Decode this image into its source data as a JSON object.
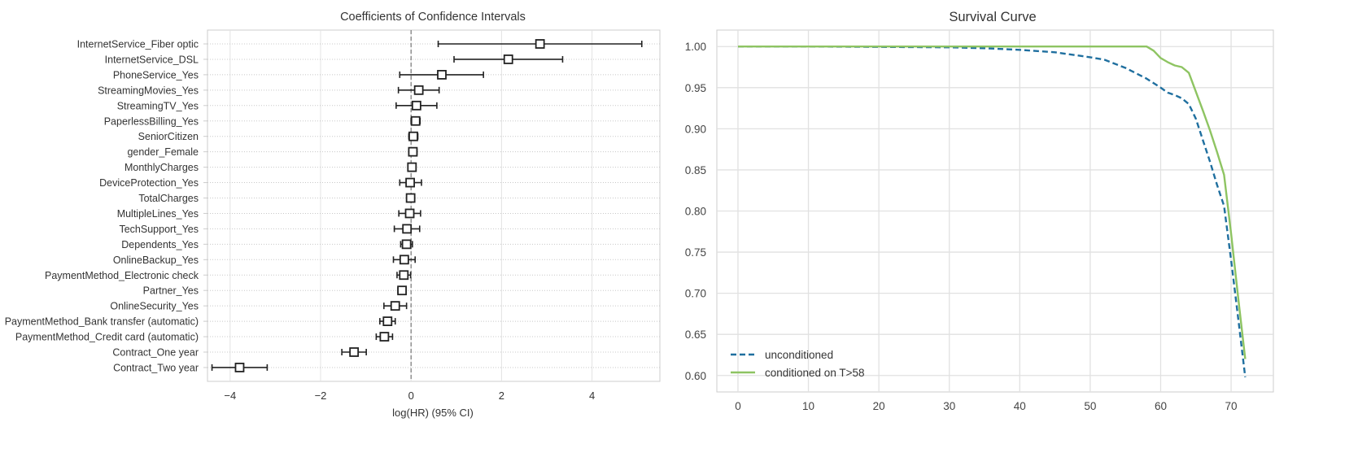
{
  "chart_data": [
    {
      "type": "forest",
      "title": "Coefficients of Confidence Intervals",
      "xlabel": "log(HR) (95% CI)",
      "ylabel": "",
      "xlim": [
        -4.5,
        5.5
      ],
      "xticks": [
        -4,
        -2,
        0,
        2,
        4
      ],
      "reference_line": 0,
      "grid": true,
      "rows": [
        {
          "label": "InternetService_Fiber optic",
          "coef": 2.85,
          "lower": 0.6,
          "upper": 5.1
        },
        {
          "label": "InternetService_DSL",
          "coef": 2.15,
          "lower": 0.95,
          "upper": 3.35
        },
        {
          "label": "PhoneService_Yes",
          "coef": 0.68,
          "lower": -0.25,
          "upper": 1.6
        },
        {
          "label": "StreamingMovies_Yes",
          "coef": 0.17,
          "lower": -0.28,
          "upper": 0.62
        },
        {
          "label": "StreamingTV_Yes",
          "coef": 0.12,
          "lower": -0.33,
          "upper": 0.57
        },
        {
          "label": "PaperlessBilling_Yes",
          "coef": 0.1,
          "lower": 0.0,
          "upper": 0.2
        },
        {
          "label": "SeniorCitizen",
          "coef": 0.05,
          "lower": -0.05,
          "upper": 0.15
        },
        {
          "label": "gender_Female",
          "coef": 0.04,
          "lower": -0.05,
          "upper": 0.13
        },
        {
          "label": "MonthlyCharges",
          "coef": 0.02,
          "lower": 0.0,
          "upper": 0.04
        },
        {
          "label": "DeviceProtection_Yes",
          "coef": -0.02,
          "lower": -0.25,
          "upper": 0.23
        },
        {
          "label": "TotalCharges",
          "coef": -0.01,
          "lower": -0.02,
          "upper": 0.0
        },
        {
          "label": "MultipleLines_Yes",
          "coef": -0.03,
          "lower": -0.27,
          "upper": 0.21
        },
        {
          "label": "TechSupport_Yes",
          "coef": -0.09,
          "lower": -0.37,
          "upper": 0.19
        },
        {
          "label": "Dependents_Yes",
          "coef": -0.1,
          "lower": -0.23,
          "upper": 0.03
        },
        {
          "label": "OnlineBackup_Yes",
          "coef": -0.15,
          "lower": -0.39,
          "upper": 0.09
        },
        {
          "label": "PaymentMethod_Electronic check",
          "coef": -0.16,
          "lower": -0.31,
          "upper": -0.01
        },
        {
          "label": "Partner_Yes",
          "coef": -0.2,
          "lower": -0.29,
          "upper": -0.11
        },
        {
          "label": "OnlineSecurity_Yes",
          "coef": -0.35,
          "lower": -0.6,
          "upper": -0.1
        },
        {
          "label": "PaymentMethod_Bank transfer (automatic)",
          "coef": -0.52,
          "lower": -0.69,
          "upper": -0.35
        },
        {
          "label": "PaymentMethod_Credit card (automatic)",
          "coef": -0.59,
          "lower": -0.77,
          "upper": -0.41
        },
        {
          "label": "Contract_One year",
          "coef": -1.26,
          "lower": -1.53,
          "upper": -0.99
        },
        {
          "label": "Contract_Two year",
          "coef": -3.79,
          "lower": -4.4,
          "upper": -3.18
        }
      ]
    },
    {
      "type": "line",
      "title": "Survival Curve",
      "xlabel": "",
      "ylabel": "",
      "xlim": [
        -3,
        76
      ],
      "ylim": [
        0.58,
        1.02
      ],
      "xticks": [
        0,
        10,
        20,
        30,
        40,
        50,
        60,
        70
      ],
      "yticks": [
        0.6,
        0.65,
        0.7,
        0.75,
        0.8,
        0.85,
        0.9,
        0.95,
        1.0
      ],
      "ytick_labels": [
        "0.60",
        "0.65",
        "0.70",
        "0.75",
        "0.80",
        "0.85",
        "0.90",
        "0.95",
        "1.00"
      ],
      "grid": true,
      "legend": "lower-left",
      "colors": {
        "unconditioned": "#1f6f9f",
        "conditioned": "#8ec462",
        "grid": "#e1e1e1"
      },
      "series": [
        {
          "name": "unconditioned",
          "style": "dashed",
          "x": [
            0,
            10,
            20,
            30,
            35,
            40,
            45,
            50,
            52,
            55,
            58,
            60,
            61,
            62,
            63,
            64,
            65,
            66,
            67,
            68,
            69,
            70,
            71,
            72
          ],
          "y": [
            1.0,
            1.0,
            0.9995,
            0.999,
            0.998,
            0.996,
            0.993,
            0.987,
            0.984,
            0.974,
            0.961,
            0.95,
            0.944,
            0.941,
            0.937,
            0.93,
            0.912,
            0.886,
            0.86,
            0.832,
            0.806,
            0.74,
            0.67,
            0.598
          ]
        },
        {
          "name": "conditioned on T>58",
          "style": "solid",
          "x": [
            0,
            10,
            20,
            30,
            40,
            50,
            57,
            58,
            59,
            60,
            61,
            62,
            63,
            64,
            65,
            66,
            67,
            68,
            69,
            70,
            71,
            72
          ],
          "y": [
            1.0,
            1.0,
            1.0,
            1.0,
            1.0,
            1.0,
            1.0,
            1.0,
            0.995,
            0.986,
            0.981,
            0.977,
            0.975,
            0.968,
            0.945,
            0.922,
            0.898,
            0.872,
            0.844,
            0.772,
            0.695,
            0.62
          ]
        }
      ]
    }
  ]
}
